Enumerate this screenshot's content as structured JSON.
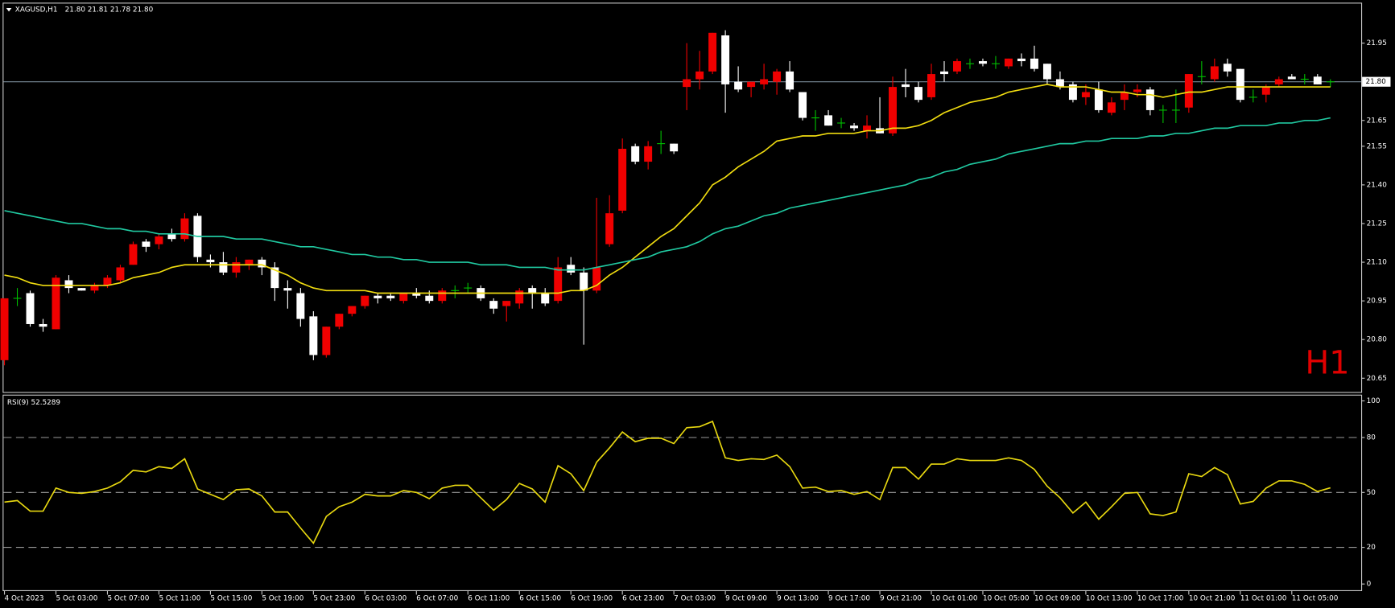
{
  "chart_data": [
    {
      "type": "candlestick",
      "title": "XAGUSD,H1",
      "quote": "21.80 21.81 21.78 21.80",
      "timeframe": "H1",
      "categories": [
        "4 Oct 2023",
        null,
        null,
        null,
        "5 Oct 03:00",
        null,
        null,
        null,
        "5 Oct 07:00",
        null,
        null,
        null,
        "5 Oct 11:00",
        null,
        null,
        null,
        "5 Oct 15:00",
        null,
        null,
        null,
        "5 Oct 19:00",
        null,
        null,
        null,
        "5 Oct 23:00",
        null,
        null,
        null,
        "6 Oct 03:00",
        null,
        null,
        null,
        "6 Oct 07:00",
        null,
        null,
        null,
        "6 Oct 11:00",
        null,
        null,
        null,
        "6 Oct 15:00",
        null,
        null,
        null,
        "6 Oct 19:00",
        null,
        null,
        null,
        "6 Oct 23:00",
        null,
        null,
        null,
        "7 Oct 03:00",
        null,
        null,
        null,
        "9 Oct 09:00",
        null,
        null,
        null,
        "9 Oct 13:00",
        null,
        null,
        null,
        "9 Oct 17:00",
        null,
        null,
        null,
        "9 Oct 21:00",
        null,
        null,
        null,
        "10 Oct 01:00",
        null,
        null,
        null,
        "10 Oct 05:00",
        null,
        null,
        null,
        "10 Oct 09:00",
        null,
        null,
        null,
        "10 Oct 13:00",
        null,
        null,
        null,
        "10 Oct 17:00",
        null,
        null,
        null,
        "10 Oct 21:00",
        null,
        null,
        null,
        "11 Oct 01:00",
        null,
        null,
        null,
        "11 Oct 05:00",
        null,
        null,
        null
      ],
      "open": [
        20.72,
        20.96,
        20.98,
        20.86,
        20.84,
        21.03,
        21.0,
        20.99,
        21.01,
        21.03,
        21.09,
        21.18,
        21.17,
        21.21,
        21.19,
        21.28,
        21.11,
        21.1,
        21.06,
        21.09,
        21.11,
        21.08,
        21.0,
        20.98,
        20.89,
        20.74,
        20.85,
        20.9,
        20.93,
        20.97,
        20.97,
        20.95,
        20.98,
        20.97,
        20.95,
        20.99,
        21.0,
        21.0,
        20.95,
        20.93,
        20.94,
        21.0,
        20.98,
        20.95,
        21.09,
        21.06,
        20.99,
        21.17,
        21.3,
        21.55,
        21.49,
        21.56,
        21.56,
        21.78,
        21.81,
        21.84,
        21.98,
        21.8,
        21.78,
        21.79,
        21.8,
        21.84,
        21.76,
        21.66,
        21.67,
        21.64,
        21.63,
        21.61,
        21.62,
        21.6,
        21.79,
        21.78,
        21.74,
        21.84,
        21.84,
        21.87,
        21.88,
        21.87,
        21.86,
        21.89,
        21.89,
        21.87,
        21.81,
        21.79,
        21.74,
        21.77,
        21.68,
        21.73,
        21.76,
        21.77,
        21.69,
        21.69,
        21.7,
        21.82,
        21.81,
        21.87,
        21.85,
        21.74,
        21.75,
        21.79,
        21.82,
        21.81,
        21.82,
        21.8
      ],
      "high": [
        20.96,
        21.0,
        20.99,
        20.88,
        21.05,
        21.05,
        21.0,
        21.02,
        21.05,
        21.09,
        21.18,
        21.19,
        21.21,
        21.23,
        21.29,
        21.29,
        21.13,
        21.14,
        21.12,
        21.11,
        21.12,
        21.1,
        21.03,
        21.0,
        20.91,
        20.85,
        20.9,
        20.93,
        20.97,
        20.98,
        20.98,
        20.98,
        21.0,
        20.99,
        21.0,
        21.01,
        21.02,
        21.01,
        20.96,
        20.95,
        21.0,
        21.01,
        21.0,
        21.12,
        21.12,
        21.08,
        21.35,
        21.36,
        21.58,
        21.56,
        21.57,
        21.61,
        21.56,
        21.95,
        21.92,
        21.99,
        22.0,
        21.86,
        21.8,
        21.87,
        21.85,
        21.88,
        21.76,
        21.69,
        21.69,
        21.66,
        21.64,
        21.67,
        21.74,
        21.82,
        21.85,
        21.8,
        21.87,
        21.88,
        21.89,
        21.89,
        21.89,
        21.9,
        21.89,
        21.91,
        21.94,
        21.87,
        21.84,
        21.8,
        21.79,
        21.8,
        21.74,
        21.79,
        21.79,
        21.78,
        21.71,
        21.77,
        21.83,
        21.88,
        21.89,
        21.89,
        21.85,
        21.77,
        21.79,
        21.82,
        21.83,
        21.83,
        21.83,
        21.81
      ],
      "low": [
        20.7,
        20.93,
        20.85,
        20.83,
        20.84,
        20.98,
        20.99,
        20.98,
        21.0,
        21.02,
        21.09,
        21.14,
        21.15,
        21.18,
        21.18,
        21.1,
        21.08,
        21.05,
        21.04,
        21.07,
        21.05,
        20.95,
        20.92,
        20.85,
        20.72,
        20.73,
        20.84,
        20.89,
        20.92,
        20.94,
        20.95,
        20.94,
        20.96,
        20.94,
        20.94,
        20.96,
        20.98,
        20.95,
        20.9,
        20.87,
        20.92,
        20.92,
        20.93,
        20.94,
        21.05,
        20.78,
        20.98,
        21.16,
        21.29,
        21.48,
        21.46,
        21.52,
        21.52,
        21.69,
        21.77,
        21.83,
        21.68,
        21.76,
        21.74,
        21.77,
        21.75,
        21.76,
        21.65,
        21.61,
        21.63,
        21.62,
        21.61,
        21.58,
        21.6,
        21.59,
        21.74,
        21.72,
        21.73,
        21.8,
        21.83,
        21.85,
        21.86,
        21.85,
        21.85,
        21.86,
        21.84,
        21.79,
        21.77,
        21.72,
        21.71,
        21.68,
        21.67,
        21.69,
        21.74,
        21.67,
        21.64,
        21.64,
        21.68,
        21.79,
        21.8,
        21.82,
        21.72,
        21.72,
        21.72,
        21.78,
        21.81,
        21.79,
        21.79,
        21.78
      ],
      "close": [
        20.96,
        20.96,
        20.86,
        20.85,
        21.04,
        21.0,
        20.99,
        21.01,
        21.04,
        21.08,
        21.17,
        21.16,
        21.2,
        21.19,
        21.27,
        21.12,
        21.1,
        21.06,
        21.1,
        21.11,
        21.08,
        21.0,
        20.99,
        20.88,
        20.74,
        20.85,
        20.9,
        20.93,
        20.97,
        20.96,
        20.96,
        20.98,
        20.97,
        20.95,
        20.99,
        20.99,
        21.0,
        20.96,
        20.92,
        20.95,
        20.99,
        20.98,
        20.94,
        21.08,
        21.06,
        20.99,
        21.08,
        21.29,
        21.54,
        21.49,
        21.55,
        21.56,
        21.53,
        21.81,
        21.84,
        21.99,
        21.79,
        21.77,
        21.8,
        21.81,
        21.84,
        21.77,
        21.66,
        21.66,
        21.63,
        21.64,
        21.62,
        21.63,
        21.6,
        21.78,
        21.78,
        21.73,
        21.83,
        21.83,
        21.88,
        21.87,
        21.87,
        21.87,
        21.89,
        21.88,
        21.85,
        21.81,
        21.78,
        21.73,
        21.76,
        21.69,
        21.72,
        21.76,
        21.77,
        21.69,
        21.69,
        21.69,
        21.83,
        21.82,
        21.86,
        21.84,
        21.73,
        21.74,
        21.78,
        21.81,
        21.81,
        21.81,
        21.79,
        21.8
      ],
      "up_color": "#f00000",
      "down_color": "#ffffff",
      "doji_color": "#00c000",
      "lines": [
        {
          "color": "#f0dc10",
          "values": [
            21.05,
            21.04,
            21.02,
            21.01,
            21.01,
            21.01,
            21.01,
            21.01,
            21.01,
            21.02,
            21.04,
            21.05,
            21.06,
            21.08,
            21.09,
            21.09,
            21.09,
            21.09,
            21.09,
            21.09,
            21.09,
            21.07,
            21.05,
            21.02,
            21.0,
            20.99,
            20.99,
            20.99,
            20.99,
            20.98,
            20.98,
            20.98,
            20.98,
            20.98,
            20.98,
            20.98,
            20.98,
            20.98,
            20.98,
            20.98,
            20.98,
            20.98,
            20.98,
            20.98,
            20.99,
            20.99,
            21.01,
            21.05,
            21.08,
            21.12,
            21.16,
            21.2,
            21.23,
            21.28,
            21.33,
            21.4,
            21.43,
            21.47,
            21.5,
            21.53,
            21.57,
            21.58,
            21.59,
            21.59,
            21.6,
            21.6,
            21.6,
            21.61,
            21.61,
            21.62,
            21.62,
            21.63,
            21.65,
            21.68,
            21.7,
            21.72,
            21.73,
            21.74,
            21.76,
            21.77,
            21.78,
            21.79,
            21.78,
            21.78,
            21.78,
            21.77,
            21.76,
            21.76,
            21.75,
            21.75,
            21.74,
            21.75,
            21.76,
            21.76,
            21.77,
            21.78,
            21.78,
            21.78,
            21.78,
            21.78,
            21.78,
            21.78,
            21.78,
            21.78
          ]
        },
        {
          "color": "#20c8a0",
          "values": [
            21.3,
            21.29,
            21.28,
            21.27,
            21.26,
            21.25,
            21.25,
            21.24,
            21.23,
            21.23,
            21.22,
            21.22,
            21.21,
            21.21,
            21.21,
            21.2,
            21.2,
            21.2,
            21.19,
            21.19,
            21.19,
            21.18,
            21.17,
            21.16,
            21.16,
            21.15,
            21.14,
            21.13,
            21.13,
            21.12,
            21.12,
            21.11,
            21.11,
            21.1,
            21.1,
            21.1,
            21.1,
            21.09,
            21.09,
            21.09,
            21.08,
            21.08,
            21.08,
            21.07,
            21.07,
            21.07,
            21.08,
            21.09,
            21.1,
            21.11,
            21.12,
            21.14,
            21.15,
            21.16,
            21.18,
            21.21,
            21.23,
            21.24,
            21.26,
            21.28,
            21.29,
            21.31,
            21.32,
            21.33,
            21.34,
            21.35,
            21.36,
            21.37,
            21.38,
            21.39,
            21.4,
            21.42,
            21.43,
            21.45,
            21.46,
            21.48,
            21.49,
            21.5,
            21.52,
            21.53,
            21.54,
            21.55,
            21.56,
            21.56,
            21.57,
            21.57,
            21.58,
            21.58,
            21.58,
            21.59,
            21.59,
            21.6,
            21.6,
            21.61,
            21.62,
            21.62,
            21.63,
            21.63,
            21.63,
            21.64,
            21.64,
            21.65,
            21.65,
            21.66
          ]
        }
      ],
      "ylim": [
        20.6,
        22.1
      ],
      "yticks": [
        20.65,
        {
          "value": 20.8,
          "label": "20.80"
        },
        20.95,
        {
          "value": 21.1,
          "label": "21.10"
        },
        21.25,
        {
          "value": 21.4,
          "label": "21.40"
        },
        21.55,
        21.65,
        21.95
      ],
      "price_line": {
        "value": 21.8,
        "label": "21.80"
      }
    },
    {
      "type": "line",
      "title": "RSI(9) 52.5289",
      "color": "#e8d810",
      "values": [
        44.7,
        45.6,
        39.8,
        39.8,
        52.4,
        50.0,
        49.5,
        50.5,
        52.4,
        55.8,
        62.1,
        61.2,
        64.1,
        63.1,
        68.4,
        51.9,
        49.0,
        46.1,
        51.5,
        51.9,
        48.1,
        39.3,
        39.3,
        30.6,
        22.3,
        36.9,
        42.2,
        44.7,
        49.0,
        48.1,
        48.1,
        51.0,
        50.0,
        46.6,
        52.4,
        53.9,
        53.9,
        47.1,
        40.3,
        46.1,
        54.9,
        51.9,
        44.7,
        64.6,
        60.2,
        51.0,
        66.5,
        74.3,
        83.0,
        77.7,
        79.6,
        79.6,
        76.7,
        85.4,
        85.9,
        88.8,
        68.9,
        67.5,
        68.4,
        68.0,
        70.4,
        64.1,
        52.4,
        52.9,
        50.5,
        51.0,
        49.0,
        50.5,
        46.1,
        63.6,
        63.6,
        57.3,
        65.5,
        65.5,
        68.4,
        67.5,
        67.5,
        67.5,
        68.9,
        67.5,
        62.6,
        53.4,
        47.1,
        38.8,
        44.7,
        35.4,
        42.2,
        49.5,
        50.0,
        38.3,
        37.4,
        39.3,
        60.2,
        58.7,
        63.6,
        59.7,
        43.7,
        45.1,
        52.4,
        56.3,
        56.3,
        54.4,
        50.5,
        52.53
      ],
      "ylim": [
        0,
        100
      ],
      "yticks": [
        0,
        20,
        50,
        80,
        100
      ],
      "levels": [
        20,
        50,
        80
      ]
    }
  ]
}
